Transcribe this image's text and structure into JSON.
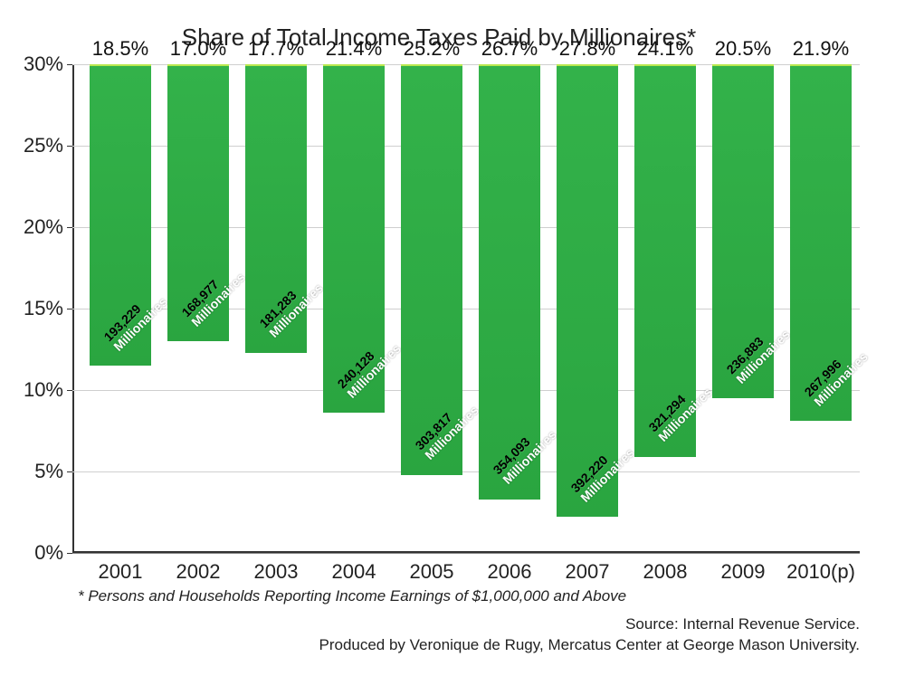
{
  "chart": {
    "type": "bar",
    "title": "Share of Total Income Taxes Paid by Millionaires*",
    "title_fontsize": 26,
    "footnote": "* Persons and Households Reporting Income Earnings of $1,000,000 and Above",
    "source_line1": "Source: Internal Revenue Service.",
    "source_line2": "Produced by Veronique de Rugy, Mercatus Center at George Mason University.",
    "background_color": "#ffffff",
    "grid_color": "#cfcfcf",
    "axis_color": "#333333",
    "bar_fill_top": "#33b24a",
    "bar_fill_bottom": "#2aa540",
    "bar_highlight": "#b9e84e",
    "bar_width": 0.78,
    "inner_label_rotation_deg": -45,
    "axis": {
      "ymin": 0,
      "ymax": 30,
      "ytick_step": 5,
      "ytick_format_suffix": "%",
      "label_fontsize": 22
    },
    "categories": [
      "2001",
      "2002",
      "2003",
      "2004",
      "2005",
      "2006",
      "2007",
      "2008",
      "2009",
      "2010(p)"
    ],
    "values": [
      18.5,
      17.0,
      17.7,
      21.4,
      25.2,
      26.7,
      27.8,
      24.1,
      20.5,
      21.9
    ],
    "value_labels": [
      "18.5%",
      "17.0%",
      "17.7%",
      "21.4%",
      "25.2%",
      "26.7%",
      "27.8%",
      "24.1%",
      "20.5%",
      "21.9%"
    ],
    "inner_counts": [
      "193,229",
      "168,977",
      "181,283",
      "240,128",
      "303,817",
      "354,093",
      "392,220",
      "321,294",
      "236,883",
      "267,996"
    ],
    "inner_sublabel": "Millionaires"
  }
}
